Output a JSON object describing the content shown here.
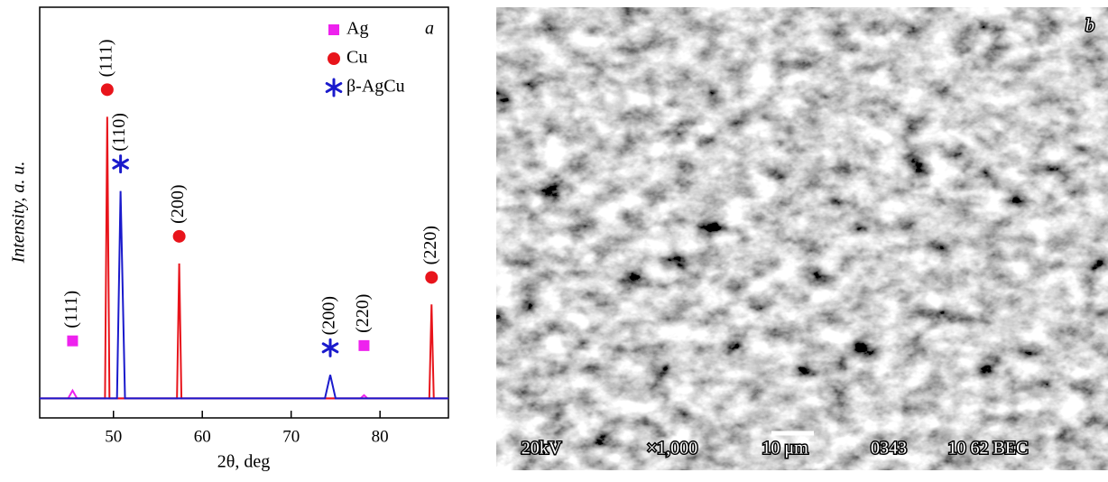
{
  "chart_data": {
    "type": "line",
    "panel_label": "a",
    "x_label": "2θ, deg",
    "y_label": "Intensity, a. u.",
    "xlim": [
      41.7,
      87.7
    ],
    "xticks": [
      50,
      60,
      70,
      80
    ],
    "ylim": [
      -5,
      100
    ],
    "legend": "upper right",
    "series": [
      {
        "name": "Ag",
        "color": "#ee22ee",
        "marker": "square",
        "x": [
          41.7,
          44.9,
          45.4,
          45.9,
          77.8,
          78.2,
          78.6,
          87.7
        ],
        "values": [
          0,
          0,
          2,
          0,
          0,
          0.8,
          0,
          0
        ],
        "peak_labels": [
          "(111)",
          "(220)"
        ]
      },
      {
        "name": "Cu",
        "color": "#e8141b",
        "marker": "circle",
        "x": [
          41.7,
          49.05,
          49.3,
          49.55,
          57.15,
          57.4,
          57.65,
          85.55,
          85.8,
          86.05,
          87.7
        ],
        "values": [
          0,
          0,
          72,
          0,
          0,
          34.5,
          0,
          0,
          24,
          0,
          0
        ],
        "peak_labels": [
          "(111)",
          "(200)",
          "(220)"
        ]
      },
      {
        "name": "β-AgCu",
        "color": "#1a1acc",
        "marker": "asterisk",
        "x": [
          41.7,
          50.4,
          50.8,
          51.3,
          73.8,
          74.4,
          75.0,
          87.7
        ],
        "values": [
          0,
          0,
          53,
          0,
          0,
          6,
          0,
          0
        ],
        "peak_labels": [
          "(110)",
          "(200)"
        ]
      }
    ]
  },
  "image_panel": {
    "label": "b",
    "info": [
      "20kV",
      "×1,000",
      "10 μm",
      "0343",
      "10 62 BEC"
    ]
  }
}
